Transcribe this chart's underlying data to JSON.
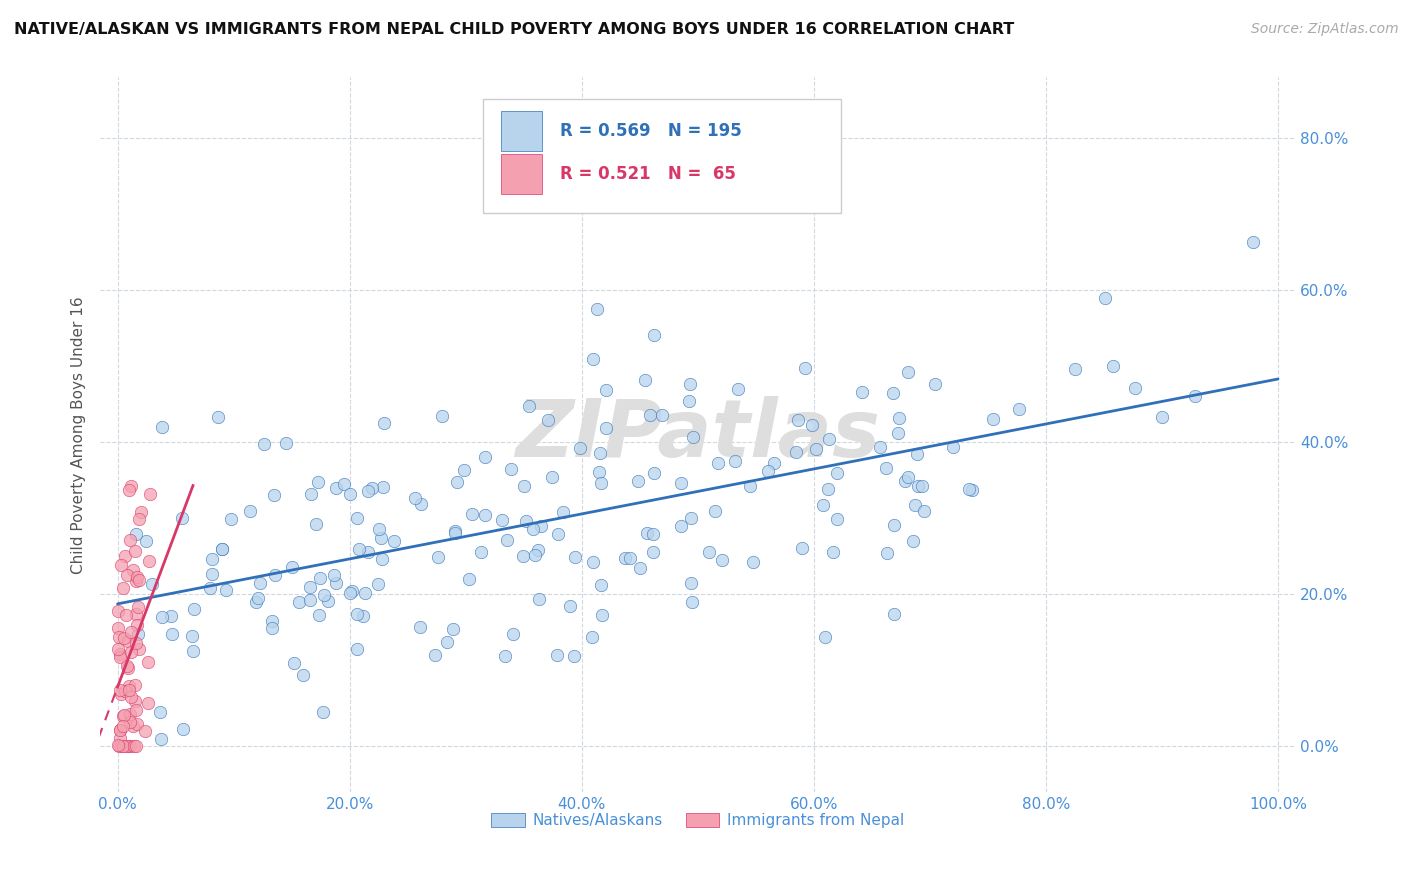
{
  "title": "NATIVE/ALASKAN VS IMMIGRANTS FROM NEPAL CHILD POVERTY AMONG BOYS UNDER 16 CORRELATION CHART",
  "source": "Source: ZipAtlas.com",
  "ylabel": "Child Poverty Among Boys Under 16",
  "blue_R": 0.569,
  "blue_N": 195,
  "pink_R": 0.521,
  "pink_N": 65,
  "blue_color": "#b8d4ed",
  "pink_color": "#f4a0b0",
  "blue_line_color": "#3070b8",
  "pink_line_color": "#d83868",
  "legend_label_blue": "Natives/Alaskans",
  "legend_label_pink": "Immigrants from Nepal",
  "xlim": [
    -0.015,
    1.015
  ],
  "ylim": [
    -0.06,
    0.88
  ],
  "xticks": [
    0.0,
    0.2,
    0.4,
    0.6,
    0.8,
    1.0
  ],
  "yticks": [
    0.0,
    0.2,
    0.4,
    0.6,
    0.8
  ],
  "xticklabels": [
    "0.0%",
    "20.0%",
    "40.0%",
    "60.0%",
    "80.0%",
    "100.0%"
  ],
  "yticklabels": [
    "0.0%",
    "20.0%",
    "40.0%",
    "60.0%",
    "80.0%"
  ],
  "background_color": "#ffffff",
  "grid_color": "#d0d8e0"
}
